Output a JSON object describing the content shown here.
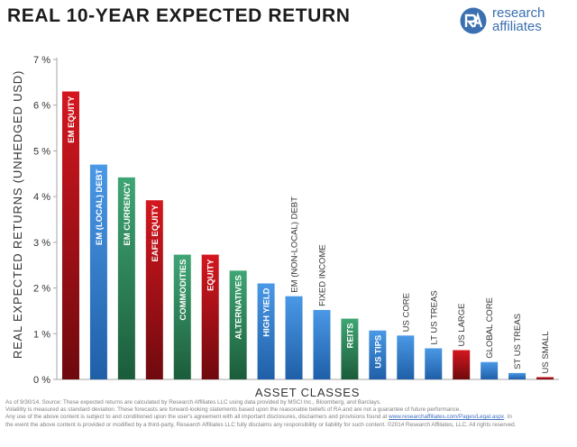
{
  "header": {
    "title": "REAL 10-YEAR EXPECTED RETURN",
    "logo_line1": "research",
    "logo_line2": "affiliates"
  },
  "colors": {
    "red": "#b00f16",
    "green": "#2f8a5a",
    "blue": "#3a82d4",
    "logo_blue": "#3a6fb0"
  },
  "chart_data": {
    "type": "bar",
    "ylabel": "REAL EXPECTED RETURNS (UNHEDGED USD)",
    "xlabel": "ASSET CLASSES",
    "ylim": [
      0,
      7
    ],
    "yticks": [
      "0 %",
      "1 %",
      "2 %",
      "3 %",
      "4 %",
      "5 %",
      "6 %",
      "7 %"
    ],
    "grid": false,
    "categories": [
      "EM EQUITY",
      "EM (LOCAL) DEBT",
      "EM CURRENCY",
      "EAFE EQUITY",
      "COMMODITIES",
      "EQUITY",
      "ALTERNATIVES",
      "HIGH YIELD",
      "EM (NON-LOCAL) DEBT",
      "FIXED INCOME",
      "REITS",
      "US TIPS",
      "US CORE",
      "LT US TREAS",
      "US LARGE",
      "GLOBAL CORE",
      "ST US TREAS",
      "US SMALL"
    ],
    "values": [
      6.3,
      4.7,
      4.42,
      3.92,
      2.73,
      2.73,
      2.38,
      2.1,
      1.82,
      1.52,
      1.33,
      1.07,
      0.96,
      0.68,
      0.64,
      0.38,
      0.14,
      0.05
    ],
    "bar_colors": [
      "red",
      "blue",
      "green",
      "red",
      "green",
      "red",
      "green",
      "blue",
      "blue",
      "blue",
      "green",
      "blue",
      "blue",
      "blue",
      "red",
      "blue",
      "blue",
      "red"
    ],
    "label_inside": [
      true,
      true,
      true,
      true,
      true,
      true,
      true,
      true,
      false,
      false,
      true,
      true,
      false,
      false,
      false,
      false,
      false,
      false
    ]
  },
  "footer": {
    "line1": "As of 9/30/14. Source: These expected returns are calculated by Research Affiliates LLC using data provided by MSCI Inc., Bloomberg, and Barclays.",
    "line2": "Volatility is measured as standard deviation. These forecasts are forward-looking statements based upon the reasonable beliefs of RA and are not a guarantee of future performance.",
    "line3_pre": "Any use of the above content is subject to and conditioned upon the user's agreement with all important disclosures, disclaimers and provisions found at ",
    "line3_link": "www.researchaffiliates.com/Pages/Legal.aspx",
    "line3_post": ". In",
    "line4": "the event the above content is provided or modified by a third-party, Research Affiliates LLC fully disclaims any responsibility or liability for such content.  ©2014 Research Affiliates, LLC.  All rights reserved."
  }
}
